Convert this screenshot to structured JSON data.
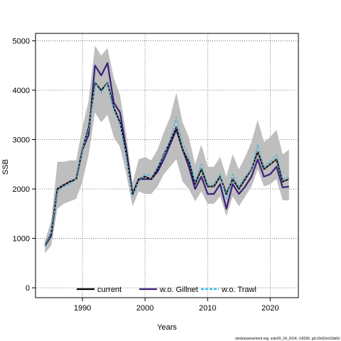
{
  "chart_data": {
    "type": "line",
    "xlabel": "Years",
    "ylabel": "SSB",
    "xlim": [
      1982.5,
      2024.5
    ],
    "ylim": [
      -200,
      5150
    ],
    "xticks": [
      1990,
      2000,
      2010,
      2020
    ],
    "yticks": [
      0,
      1000,
      2000,
      3000,
      4000,
      5000
    ],
    "grid": true,
    "legend_position": "bottom",
    "x": [
      1984,
      1985,
      1986,
      1987,
      1988,
      1989,
      1990,
      1991,
      1992,
      1993,
      1994,
      1995,
      1996,
      1997,
      1998,
      1999,
      2000,
      2001,
      2002,
      2003,
      2004,
      2005,
      2006,
      2007,
      2008,
      2009,
      2010,
      2011,
      2012,
      2013,
      2014,
      2015,
      2016,
      2017,
      2018,
      2019,
      2020,
      2021,
      2022,
      2023
    ],
    "series": [
      {
        "name": "current",
        "color": "#000000",
        "dash": "solid",
        "values": [
          850,
          1100,
          2000,
          2080,
          2150,
          2200,
          2800,
          3250,
          4150,
          4000,
          4150,
          3650,
          3350,
          2700,
          1880,
          2200,
          2250,
          2200,
          2400,
          2700,
          2950,
          3250,
          2800,
          2550,
          2100,
          2400,
          2050,
          2050,
          2250,
          1900,
          2200,
          2000,
          2200,
          2400,
          2750,
          2400,
          2500,
          2600,
          2150,
          2200
        ]
      },
      {
        "name": "w.o. Gillnet",
        "color": "#3a1f7a",
        "dash": "solid",
        "values": [
          850,
          1050,
          2000,
          2080,
          2150,
          2200,
          2800,
          3100,
          4500,
          4300,
          4550,
          3750,
          3550,
          2800,
          1900,
          2200,
          2200,
          2200,
          2350,
          2600,
          2900,
          3200,
          2800,
          2450,
          2000,
          2250,
          1900,
          1900,
          2100,
          1600,
          2100,
          1900,
          2050,
          2250,
          2600,
          2250,
          2300,
          2450,
          2030,
          2050
        ]
      },
      {
        "name": "w.o. Trawl",
        "color": "#27b7e8",
        "dash": "dashed",
        "values": [
          850,
          1100,
          1950,
          2050,
          2100,
          2200,
          2800,
          3200,
          4150,
          3950,
          4150,
          3600,
          3300,
          2650,
          1850,
          2150,
          2300,
          2250,
          2450,
          2700,
          3000,
          3450,
          2950,
          2650,
          2150,
          2500,
          2100,
          2100,
          2300,
          1800,
          2300,
          2050,
          2250,
          2400,
          2900,
          2450,
          2550,
          2700,
          2200,
          2250
        ]
      },
      {
        "name": "confidence band",
        "color": "#bebebe",
        "lower": [
          700,
          850,
          1600,
          1700,
          1750,
          1800,
          2150,
          2700,
          3550,
          3350,
          3500,
          3050,
          2850,
          2300,
          1650,
          1950,
          1900,
          1900,
          2050,
          2300,
          2450,
          2600,
          2150,
          2000,
          1750,
          1950,
          1700,
          1700,
          1850,
          1450,
          1850,
          1650,
          1850,
          2050,
          2400,
          2050,
          2100,
          2200,
          1770,
          1770
        ],
        "upper": [
          950,
          1350,
          2550,
          2550,
          2580,
          2580,
          3250,
          3800,
          4900,
          4700,
          4850,
          4250,
          3900,
          3100,
          2130,
          2600,
          2650,
          2580,
          2800,
          3150,
          3450,
          3950,
          3350,
          3050,
          2500,
          2900,
          2450,
          2450,
          2650,
          2250,
          2700,
          2400,
          2650,
          2950,
          3400,
          2950,
          3050,
          3200,
          2700,
          2800
        ]
      }
    ]
  },
  "footnote": "stockassessment.org, sole20_24_2024, r18256, git:c9c81ec53a0d"
}
